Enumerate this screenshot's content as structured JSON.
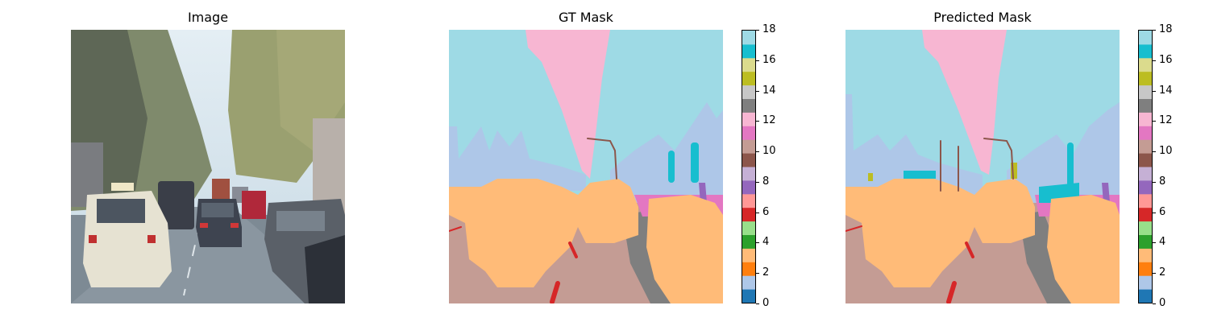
{
  "panels": {
    "image": {
      "title": "Image"
    },
    "gt": {
      "title": "GT Mask"
    },
    "pred": {
      "title": "Predicted Mask"
    }
  },
  "colorbar": {
    "min": 0,
    "max": 18,
    "tick_labels": [
      "0",
      "2",
      "4",
      "6",
      "8",
      "10",
      "12",
      "14",
      "16",
      "18"
    ],
    "colors": [
      "#1f77b4",
      "#aec7e8",
      "#ff7f0e",
      "#ffbb78",
      "#2ca02c",
      "#98df8a",
      "#d62728",
      "#ff9896",
      "#9467bd",
      "#c5b0d5",
      "#8c564b",
      "#c49c94",
      "#e377c2",
      "#f7b6d2",
      "#7f7f7f",
      "#c7c7c7",
      "#bcbd22",
      "#dbdb8d",
      "#17becf",
      "#9edae5"
    ]
  },
  "mask_colors": {
    "sky": "#9edae5",
    "vegetation": "#aec7e8",
    "road": "#c49c94",
    "car": "#ffbb78",
    "building": "#f7b6d2",
    "sidewalk": "#7f7f7f",
    "lane": "#d62728",
    "pole": "#8c564b",
    "sign": "#17becf",
    "person": "#9467bd",
    "terrain": "#e377c2",
    "light": "#bcbd22"
  }
}
